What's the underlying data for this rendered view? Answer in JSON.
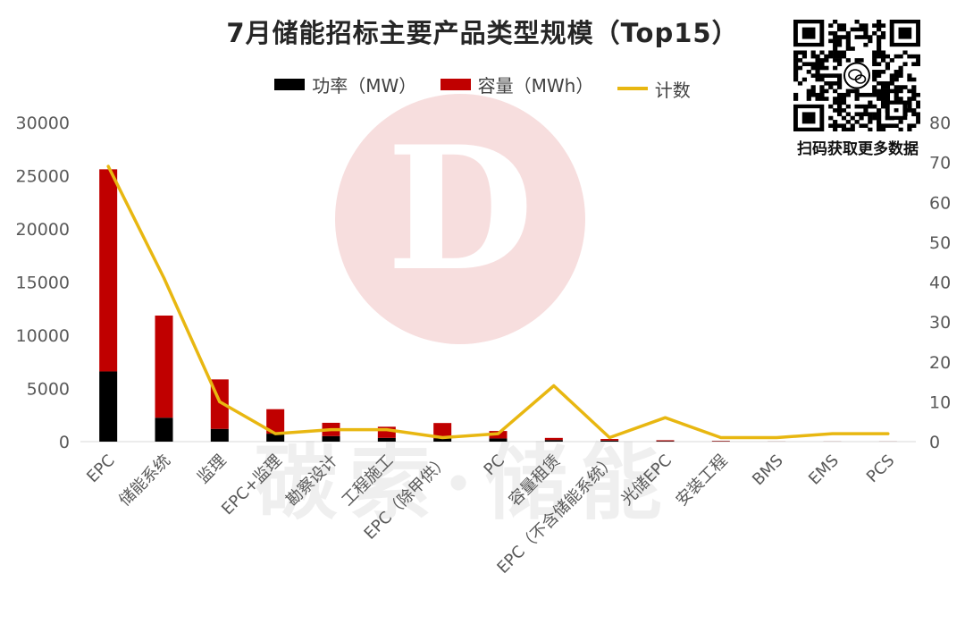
{
  "chart_data": {
    "type": "bar",
    "title": "7月储能招标主要产品类型规模（Top15）",
    "categories": [
      "EPC",
      "储能系统",
      "监理",
      "EPC+监理",
      "勘察设计",
      "工程施工",
      "EPC（除甲供）",
      "PC",
      "容量租赁",
      "EPC（不含储能系统）",
      "光储EPC",
      "安装工程",
      "BMS",
      "EMS",
      "PCS"
    ],
    "series": [
      {
        "name": "功率（MW）",
        "kind": "bar",
        "stack": "main",
        "axis": "left",
        "color": "#000000",
        "values": [
          6600,
          2250,
          1200,
          750,
          520,
          350,
          300,
          300,
          150,
          100,
          50,
          30,
          5,
          5,
          5
        ]
      },
      {
        "name": "容量（MWh）",
        "kind": "bar",
        "stack": "main",
        "axis": "left",
        "color": "#c00000",
        "values": [
          19000,
          9600,
          4650,
          2300,
          1250,
          1050,
          1450,
          700,
          200,
          150,
          80,
          40,
          5,
          5,
          5
        ]
      },
      {
        "name": "计数",
        "kind": "line",
        "axis": "right",
        "color": "#e8b711",
        "values": [
          69,
          41,
          10,
          2,
          3,
          3,
          1,
          2,
          14,
          1,
          6,
          1,
          1,
          2,
          2
        ]
      }
    ],
    "ylim_left": [
      0,
      30000
    ],
    "yticks_left": [
      0,
      5000,
      10000,
      15000,
      20000,
      25000,
      30000
    ],
    "ylim_right": [
      0,
      80
    ],
    "yticks_right": [
      0,
      10,
      20,
      30,
      40,
      50,
      60,
      70,
      80
    ],
    "grid": false,
    "legend_position": "top"
  },
  "legend": {
    "power": "功率（MW）",
    "capacity": "容量（MWh）",
    "count": "计数"
  },
  "qr": {
    "caption": "扫码获取更多数据"
  },
  "watermark": {
    "text": "碳索·储能",
    "logo_letter": "D"
  },
  "colors": {
    "power": "#000000",
    "capacity": "#c00000",
    "count": "#e8b711",
    "watermark_logo": "#f7dede",
    "watermark_text": "#efefef"
  }
}
